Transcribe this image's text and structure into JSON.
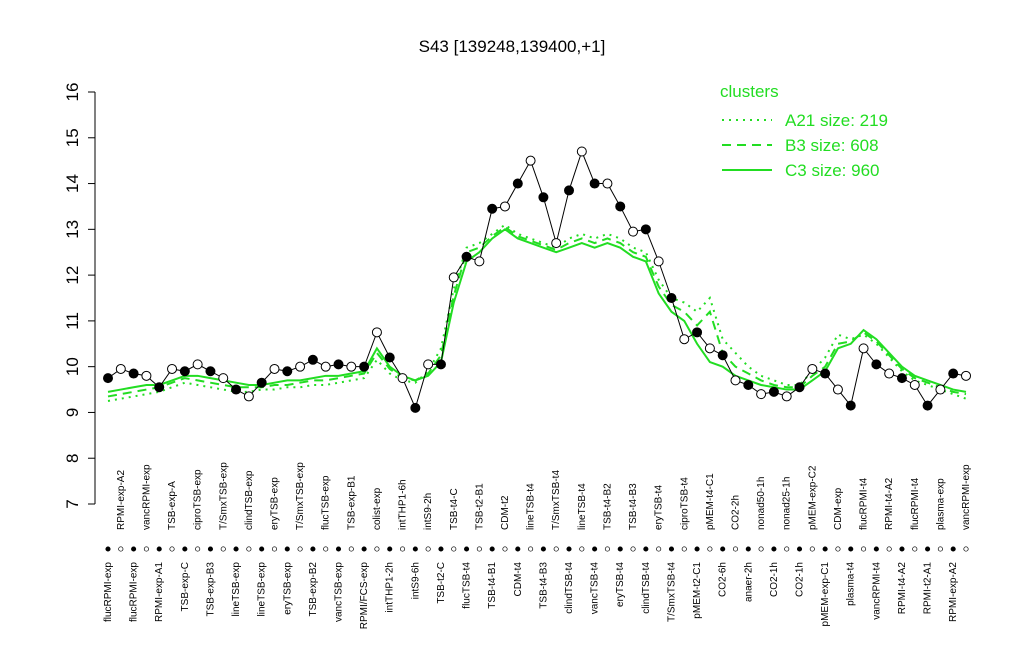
{
  "chart_data": {
    "type": "line",
    "title": "S43 [139248,139400,+1]",
    "ylim": [
      7,
      16
    ],
    "yticks": [
      7,
      8,
      9,
      10,
      11,
      12,
      13,
      14,
      15,
      16
    ],
    "legend_title": "clusters",
    "legend_position": "top-right",
    "categories": [
      "flucRPMI-exp",
      "RPMI-exp-A2",
      "flucRPMI-exp",
      "vancRPMI-exp",
      "RPMI-exp-A1",
      "TSB-exp-A",
      "TSB-exp-C",
      "ciproTSB-exp",
      "TSB-exp-B3",
      "T/SmxTSB-exp",
      "lineTSB-exp",
      "clindTSB-exp",
      "lineTSB-exp",
      "eryTSB-exp",
      "eryTSB-exp",
      "T/SmxTSB-exp",
      "TSB-exp-B2",
      "flucTSB-exp",
      "vancTSB-exp",
      "TSB-exp-B1",
      "RPMI/FCS-exp",
      "colist-exp",
      "intTHP1-2h",
      "intTHP1-6h",
      "intS9-6h",
      "intS9-2h",
      "TSB-t2-C",
      "TSB-t4-C",
      "flucTSB-t4",
      "TSB-t2-B1",
      "TSB-t4-B1",
      "CDM-t2",
      "CDM-t4",
      "lineTSB-t4",
      "TSB-t4-B3",
      "T/SmxTSB-t4",
      "clindTSB-t4",
      "lineTSB-t4",
      "vancTSB-t4",
      "TSB-t4-B2",
      "eryTSB-t4",
      "TSB-t4-B3",
      "clindTSB-t4",
      "eryTSB-t4",
      "T/SmxTSB-t4",
      "ciproTSB-t4",
      "pMEM-t2-C1",
      "pMEM-t4-C1",
      "CO2-6h",
      "CO2-2h",
      "anaer-2h",
      "nonad50-1h",
      "CO2-1h",
      "nonad25-1h",
      "CO2-1h",
      "pMEM-exp-C2",
      "pMEM-exp-C1",
      "CDM-exp",
      "plasma-t4",
      "flucRPMI-t4",
      "vancRPMI-t4",
      "RPMI-t4-A2",
      "RPMI-t4-A2",
      "flucRPMI-t4",
      "RPMI-t2-A1",
      "plasma-exp",
      "RPMI-exp-A2",
      "vancRPMI-exp"
    ],
    "series": [
      {
        "name": "A21 size: 219",
        "color": "#22dd22",
        "dash": "dotted",
        "values": [
          9.25,
          9.3,
          9.35,
          9.4,
          9.45,
          9.55,
          9.65,
          9.6,
          9.55,
          9.5,
          9.45,
          9.45,
          9.5,
          9.5,
          9.55,
          9.55,
          9.6,
          9.6,
          9.65,
          9.7,
          9.75,
          10.15,
          9.85,
          9.7,
          9.65,
          9.9,
          10.4,
          11.7,
          12.6,
          12.7,
          12.9,
          13.1,
          12.9,
          12.8,
          12.7,
          12.6,
          12.8,
          12.9,
          12.8,
          12.9,
          12.8,
          12.6,
          12.5,
          11.9,
          11.5,
          11.4,
          11.2,
          11.5,
          10.6,
          10.3,
          10.0,
          9.8,
          9.7,
          9.6,
          9.6,
          9.9,
          10.2,
          10.7,
          10.6,
          10.7,
          10.5,
          10.2,
          9.9,
          9.7,
          9.6,
          9.5,
          9.4,
          9.3
        ]
      },
      {
        "name": "B3 size: 608",
        "color": "#22dd22",
        "dash": "dashed",
        "values": [
          9.35,
          9.4,
          9.45,
          9.5,
          9.55,
          9.65,
          9.75,
          9.7,
          9.65,
          9.6,
          9.55,
          9.55,
          9.55,
          9.6,
          9.6,
          9.65,
          9.7,
          9.7,
          9.75,
          9.8,
          9.85,
          10.3,
          9.95,
          9.75,
          9.7,
          9.85,
          10.25,
          11.55,
          12.5,
          12.6,
          12.85,
          13.05,
          12.85,
          12.75,
          12.65,
          12.55,
          12.7,
          12.8,
          12.7,
          12.8,
          12.7,
          12.5,
          12.4,
          11.75,
          11.35,
          11.2,
          10.9,
          11.2,
          10.3,
          10.0,
          9.85,
          9.7,
          9.6,
          9.55,
          9.55,
          9.8,
          10.0,
          10.5,
          10.55,
          10.75,
          10.55,
          10.25,
          9.95,
          9.75,
          9.65,
          9.55,
          9.45,
          9.4
        ]
      },
      {
        "name": "C3 size: 960",
        "color": "#22dd22",
        "dash": "solid",
        "values": [
          9.45,
          9.5,
          9.55,
          9.6,
          9.6,
          9.7,
          9.8,
          9.8,
          9.75,
          9.7,
          9.65,
          9.6,
          9.6,
          9.65,
          9.7,
          9.7,
          9.75,
          9.8,
          9.8,
          9.85,
          9.9,
          10.4,
          10.0,
          9.8,
          9.7,
          9.8,
          10.1,
          11.4,
          12.3,
          12.5,
          12.8,
          13.0,
          12.8,
          12.7,
          12.6,
          12.5,
          12.6,
          12.7,
          12.6,
          12.7,
          12.6,
          12.4,
          12.3,
          11.6,
          11.2,
          11.0,
          10.5,
          10.1,
          10.0,
          9.8,
          9.7,
          9.6,
          9.55,
          9.5,
          9.5,
          9.7,
          9.9,
          10.4,
          10.5,
          10.8,
          10.6,
          10.3,
          10.0,
          9.8,
          9.7,
          9.6,
          9.5,
          9.45
        ]
      }
    ],
    "samples": {
      "values": [
        9.75,
        9.95,
        9.85,
        9.8,
        9.55,
        9.95,
        9.9,
        10.05,
        9.9,
        9.75,
        9.5,
        9.35,
        9.65,
        9.95,
        9.9,
        10.0,
        10.15,
        10.0,
        10.05,
        10.0,
        10.0,
        10.75,
        10.2,
        9.75,
        9.1,
        10.05,
        10.05,
        11.95,
        12.4,
        12.3,
        13.45,
        13.5,
        14.0,
        14.5,
        13.7,
        12.7,
        13.85,
        14.7,
        14.0,
        14.0,
        13.5,
        12.95,
        13.0,
        12.3,
        11.5,
        10.6,
        10.75,
        10.4,
        10.25,
        9.7,
        9.6,
        9.4,
        9.45,
        9.35,
        9.55,
        9.95,
        9.85,
        9.5,
        9.15,
        10.4,
        10.05,
        9.85,
        9.75,
        9.6,
        9.15,
        9.5,
        9.85,
        9.8
      ],
      "colors": [
        "#000",
        "#fff",
        "#000",
        "#fff",
        "#000",
        "#fff",
        "#000",
        "#fff",
        "#000",
        "#fff",
        "#000",
        "#fff",
        "#000",
        "#fff",
        "#000",
        "#fff",
        "#000",
        "#fff",
        "#000",
        "#fff",
        "#000",
        "#fff",
        "#000",
        "#fff",
        "#000",
        "#fff",
        "#000",
        "#fff",
        "#000",
        "#fff",
        "#000",
        "#fff",
        "#000",
        "#fff",
        "#000",
        "#fff",
        "#000",
        "#fff",
        "#000",
        "#fff",
        "#000",
        "#fff",
        "#000",
        "#fff",
        "#000",
        "#fff",
        "#000",
        "#fff",
        "#000",
        "#fff",
        "#000",
        "#fff",
        "#000",
        "#fff",
        "#000",
        "#fff",
        "#000",
        "#fff",
        "#000",
        "#fff",
        "#000",
        "#fff",
        "#000",
        "#fff",
        "#000",
        "#fff",
        "#000",
        "#fff"
      ]
    }
  }
}
